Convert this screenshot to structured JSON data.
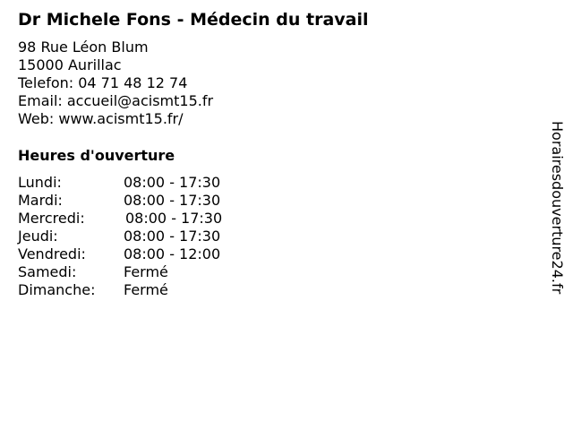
{
  "title": "Dr Michele Fons - Médecin du travail",
  "address": {
    "street": "98 Rue Léon Blum",
    "city": "15000 Aurillac",
    "phone": "Telefon: 04 71 48 12 74",
    "email": "Email: accueil@acismt15.fr",
    "web": "Web: www.acismt15.fr/"
  },
  "hours": {
    "heading": "Heures d'ouverture",
    "rows": [
      {
        "day": "Lundi:",
        "time": "08:00 - 17:30"
      },
      {
        "day": "Mardi:",
        "time": "08:00 - 17:30"
      },
      {
        "day": "Mercredi:",
        "time": "08:00 - 17:30"
      },
      {
        "day": "Jeudi:",
        "time": "08:00 - 17:30"
      },
      {
        "day": "Vendredi:",
        "time": "08:00 - 12:00"
      },
      {
        "day": "Samedi:",
        "time": "Fermé"
      },
      {
        "day": "Dimanche:",
        "time": "Fermé"
      }
    ]
  },
  "watermark": "Horairesdouverture24.fr"
}
